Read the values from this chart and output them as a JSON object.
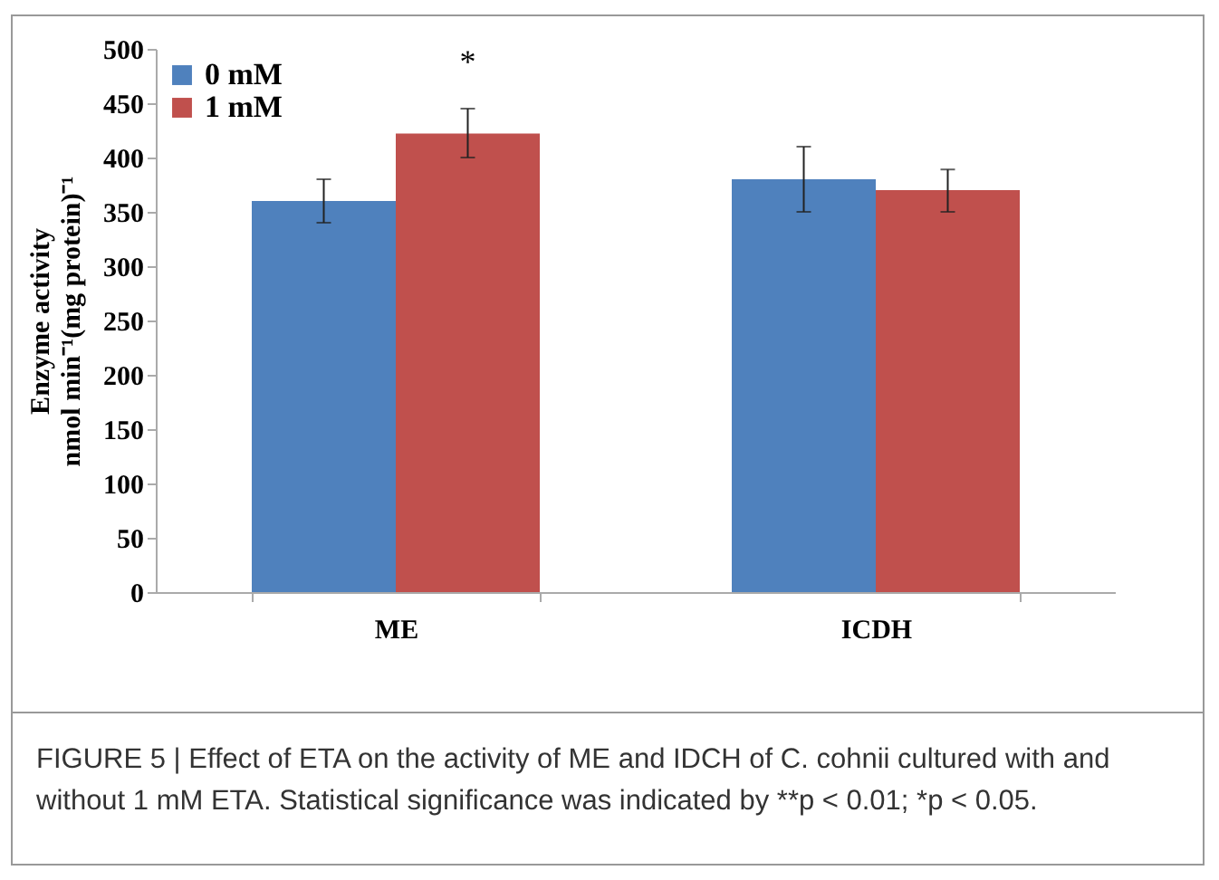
{
  "chart_data": {
    "type": "bar",
    "ylabel": "Enzyme activity\nnmol min⁻¹(mg protein)⁻¹",
    "categories": [
      "ME",
      "ICDH"
    ],
    "series": [
      {
        "name": "0 mM",
        "color": "#4f81bd",
        "values": [
          360,
          380
        ],
        "errors": [
          20,
          30
        ]
      },
      {
        "name": "1 mM",
        "color": "#c0504d",
        "values": [
          422,
          370
        ],
        "errors": [
          [
            400,
            445
          ],
          [
            350,
            389
          ]
        ]
      }
    ],
    "ylim": [
      0,
      500
    ],
    "yticks": [
      0,
      50,
      100,
      150,
      200,
      250,
      300,
      350,
      400,
      450,
      500
    ],
    "grid": false,
    "legend": "top left",
    "annotations": [
      {
        "text": "*",
        "x": "ME",
        "y": 422
      },
      "FIGURE 5 | Effect of ETA on the activity of ME and IDCH of C. cohnii cultured with and without 1 mM ETA. Statistical significance was indicated by **p < 0.01; *p < 0.05."
    ]
  }
}
